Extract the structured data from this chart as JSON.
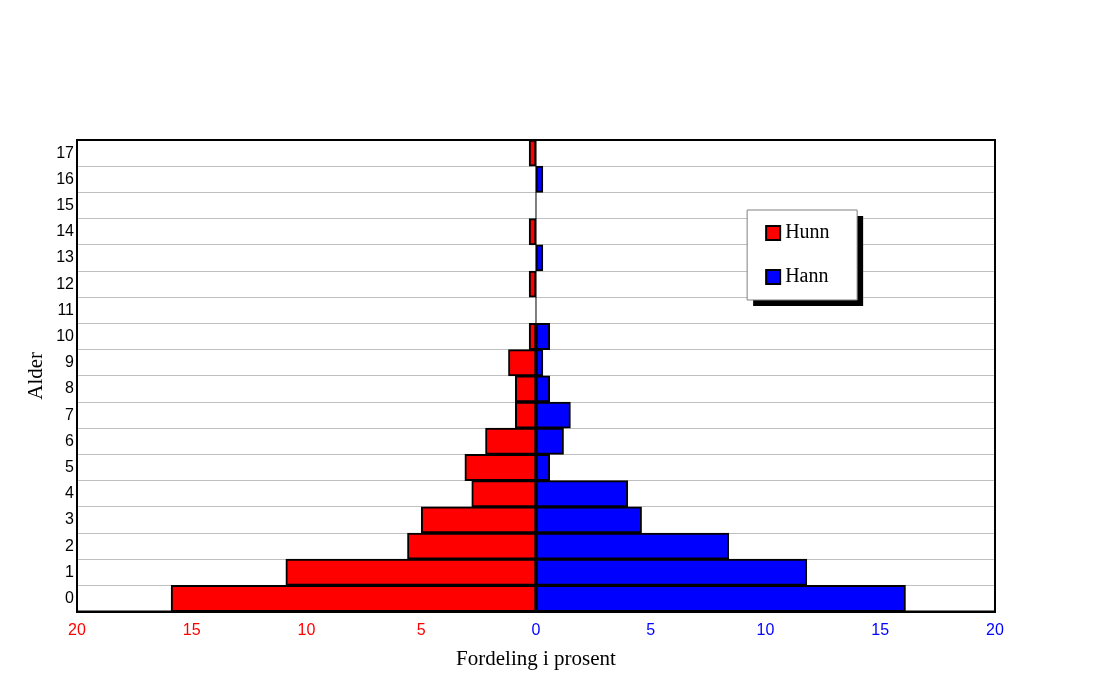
{
  "chart_data": {
    "type": "bar",
    "orientation": "horizontal",
    "stacked": true,
    "xlabel": "Fordeling i prosent",
    "ylabel": "Alder",
    "categories": [
      "17",
      "16",
      "15",
      "14",
      "13",
      "12",
      "11",
      "10",
      "9",
      "8",
      "7",
      "6",
      "5",
      "4",
      "3",
      "2",
      "1",
      "0"
    ],
    "series": [
      {
        "name": "Hunn",
        "color": "#ff0000",
        "values": [
          -0.3,
          0,
          0,
          -0.3,
          0,
          -0.3,
          0,
          -0.3,
          -1.2,
          -0.9,
          -0.9,
          -2.2,
          -3.1,
          -2.8,
          -5.0,
          -5.6,
          -10.9,
          -15.9
        ]
      },
      {
        "name": "Hann",
        "color": "#0000ff",
        "values": [
          0,
          0.3,
          0,
          0,
          0.3,
          0,
          0,
          0.6,
          0.3,
          0.6,
          1.5,
          1.2,
          0.6,
          4.0,
          4.6,
          8.4,
          11.8,
          16.1
        ]
      }
    ],
    "xlim": [
      -20,
      20
    ],
    "xticks": [
      {
        "value": -20,
        "label": "20"
      },
      {
        "value": -15,
        "label": "15"
      },
      {
        "value": -10,
        "label": "10"
      },
      {
        "value": -5,
        "label": "5"
      },
      0,
      5,
      10,
      15,
      20
    ],
    "grid": "y",
    "legend": "right"
  }
}
